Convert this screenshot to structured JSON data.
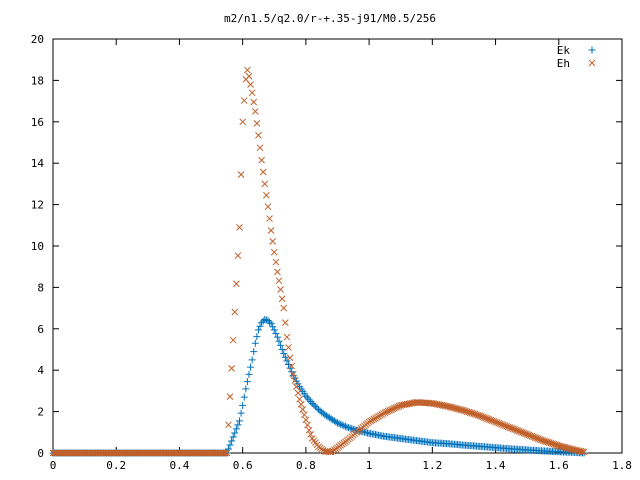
{
  "chart_data": {
    "type": "scatter",
    "title": "m2/n1.5/q2.0/r-+.35-j91/M0.5/256",
    "xlabel": "",
    "ylabel": "",
    "xlim": [
      0,
      1.8
    ],
    "ylim": [
      0,
      20
    ],
    "x_ticks": [
      0,
      0.2,
      0.4,
      0.6,
      0.8,
      1,
      1.2,
      1.4,
      1.6,
      1.8
    ],
    "x_tick_labels": [
      "0",
      "0.2",
      "0.4",
      "0.6",
      "0.8",
      "1",
      "1.2",
      "1.4",
      "1.6",
      "1.8"
    ],
    "y_ticks": [
      0,
      2,
      4,
      6,
      8,
      10,
      12,
      14,
      16,
      18,
      20
    ],
    "y_tick_labels": [
      "0",
      "2",
      "4",
      "6",
      "8",
      "10",
      "12",
      "14",
      "16",
      "18",
      "20"
    ],
    "grid": false,
    "legend_position": "top-right",
    "series": [
      {
        "name": "Ek",
        "marker": "plus",
        "color": "#0072bd",
        "x": [
          0.0,
          0.05,
          0.1,
          0.15,
          0.2,
          0.25,
          0.3,
          0.35,
          0.4,
          0.45,
          0.5,
          0.55,
          0.59,
          0.6,
          0.61,
          0.62,
          0.63,
          0.64,
          0.65,
          0.66,
          0.67,
          0.68,
          0.69,
          0.7,
          0.71,
          0.72,
          0.73,
          0.74,
          0.75,
          0.76,
          0.78,
          0.8,
          0.82,
          0.84,
          0.86,
          0.88,
          0.9,
          0.93,
          0.96,
          1.0,
          1.05,
          1.1,
          1.15,
          1.2,
          1.25,
          1.3,
          1.35,
          1.4,
          1.45,
          1.5,
          1.55,
          1.6,
          1.65,
          1.68
        ],
        "y": [
          0.0,
          0.0,
          0.0,
          0.0,
          0.0,
          0.0,
          0.0,
          0.0,
          0.0,
          0.0,
          0.0,
          0.0,
          1.55,
          2.3,
          3.1,
          3.8,
          4.5,
          5.3,
          5.95,
          6.3,
          6.45,
          6.4,
          6.25,
          5.95,
          5.6,
          5.2,
          4.8,
          4.45,
          4.1,
          3.75,
          3.2,
          2.75,
          2.4,
          2.1,
          1.85,
          1.65,
          1.45,
          1.25,
          1.1,
          0.95,
          0.8,
          0.7,
          0.6,
          0.5,
          0.45,
          0.38,
          0.32,
          0.26,
          0.2,
          0.15,
          0.1,
          0.06,
          0.03,
          0.0
        ]
      },
      {
        "name": "Eh",
        "marker": "cross",
        "color": "#c0602a",
        "x": [
          0.0,
          0.05,
          0.1,
          0.15,
          0.2,
          0.25,
          0.3,
          0.35,
          0.4,
          0.45,
          0.5,
          0.55,
          0.59,
          0.6,
          0.61,
          0.615,
          0.62,
          0.63,
          0.64,
          0.65,
          0.66,
          0.67,
          0.68,
          0.69,
          0.7,
          0.71,
          0.72,
          0.73,
          0.74,
          0.75,
          0.76,
          0.77,
          0.78,
          0.79,
          0.8,
          0.81,
          0.82,
          0.84,
          0.86,
          0.88,
          0.9,
          0.93,
          0.96,
          1.0,
          1.05,
          1.1,
          1.15,
          1.2,
          1.25,
          1.3,
          1.35,
          1.4,
          1.45,
          1.5,
          1.55,
          1.6,
          1.65,
          1.68
        ],
        "y": [
          0.0,
          0.0,
          0.0,
          0.0,
          0.0,
          0.0,
          0.0,
          0.0,
          0.0,
          0.0,
          0.0,
          0.0,
          10.9,
          16.0,
          18.05,
          18.5,
          18.2,
          17.4,
          16.5,
          15.35,
          14.15,
          13.0,
          11.9,
          10.75,
          9.7,
          8.75,
          7.9,
          7.0,
          5.6,
          4.6,
          3.8,
          3.2,
          2.6,
          2.1,
          1.6,
          1.1,
          0.7,
          0.3,
          0.08,
          0.05,
          0.25,
          0.6,
          1.0,
          1.5,
          1.95,
          2.3,
          2.45,
          2.4,
          2.25,
          2.05,
          1.8,
          1.5,
          1.2,
          0.9,
          0.6,
          0.35,
          0.15,
          0.05
        ]
      }
    ]
  }
}
